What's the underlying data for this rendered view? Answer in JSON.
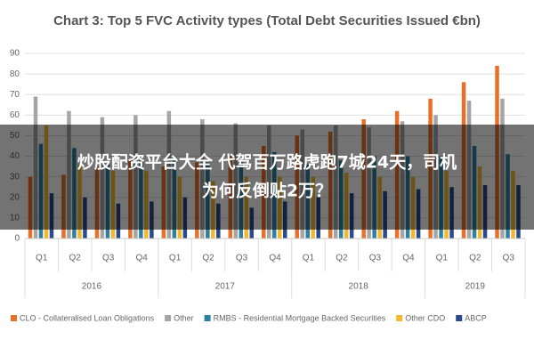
{
  "chart_data": {
    "type": "bar",
    "title": "Chart 3: Top 5 FVC Activity types (Total Debt Securities Issued €bn)",
    "categories": [
      "Q1",
      "Q2",
      "Q3",
      "Q4",
      "Q1",
      "Q2",
      "Q3",
      "Q4",
      "Q1",
      "Q2",
      "Q3",
      "Q4",
      "Q1",
      "Q2",
      "Q3"
    ],
    "groups": [
      {
        "label": "2016",
        "count": 4
      },
      {
        "label": "2017",
        "count": 4
      },
      {
        "label": "2018",
        "count": 4
      },
      {
        "label": "2019",
        "count": 3
      }
    ],
    "series": [
      {
        "name": "CLO - Collateralised Loan Obligations",
        "color": "#e8702a",
        "values": [
          30,
          31,
          35,
          38,
          35,
          37,
          40,
          45,
          50,
          52,
          58,
          62,
          68,
          76,
          84
        ]
      },
      {
        "name": "Other",
        "color": "#a5a5a5",
        "values": [
          69,
          62,
          59,
          60,
          62,
          58,
          56,
          55,
          53,
          55,
          54,
          57,
          60,
          67,
          68
        ]
      },
      {
        "name": "RMBS - Residential Mortgage Backed Securities",
        "color": "#2e7fa0",
        "values": [
          46,
          44,
          36,
          38,
          38,
          37,
          38,
          42,
          36,
          38,
          40,
          40,
          40,
          45,
          41
        ]
      },
      {
        "name": "Other CDO",
        "color": "#f2b830",
        "values": [
          55,
          36,
          33,
          33,
          30,
          28,
          30,
          30,
          30,
          32,
          30,
          30,
          33,
          35,
          33
        ]
      },
      {
        "name": "ABCP",
        "color": "#2a4a8c",
        "values": [
          22,
          20,
          17,
          18,
          20,
          17,
          15,
          18,
          20,
          22,
          23,
          24,
          25,
          26,
          26
        ]
      }
    ],
    "ylim": [
      0,
      90
    ],
    "yticks": [
      0,
      10,
      20,
      30,
      40,
      50,
      60,
      70,
      80,
      90
    ],
    "grid": true,
    "legend": "bottom"
  },
  "banner": {
    "lines": [
      "炒股配资平台大全 代驾百万路虎跑7城24天，司机",
      "为何反倒贴2万？"
    ]
  }
}
